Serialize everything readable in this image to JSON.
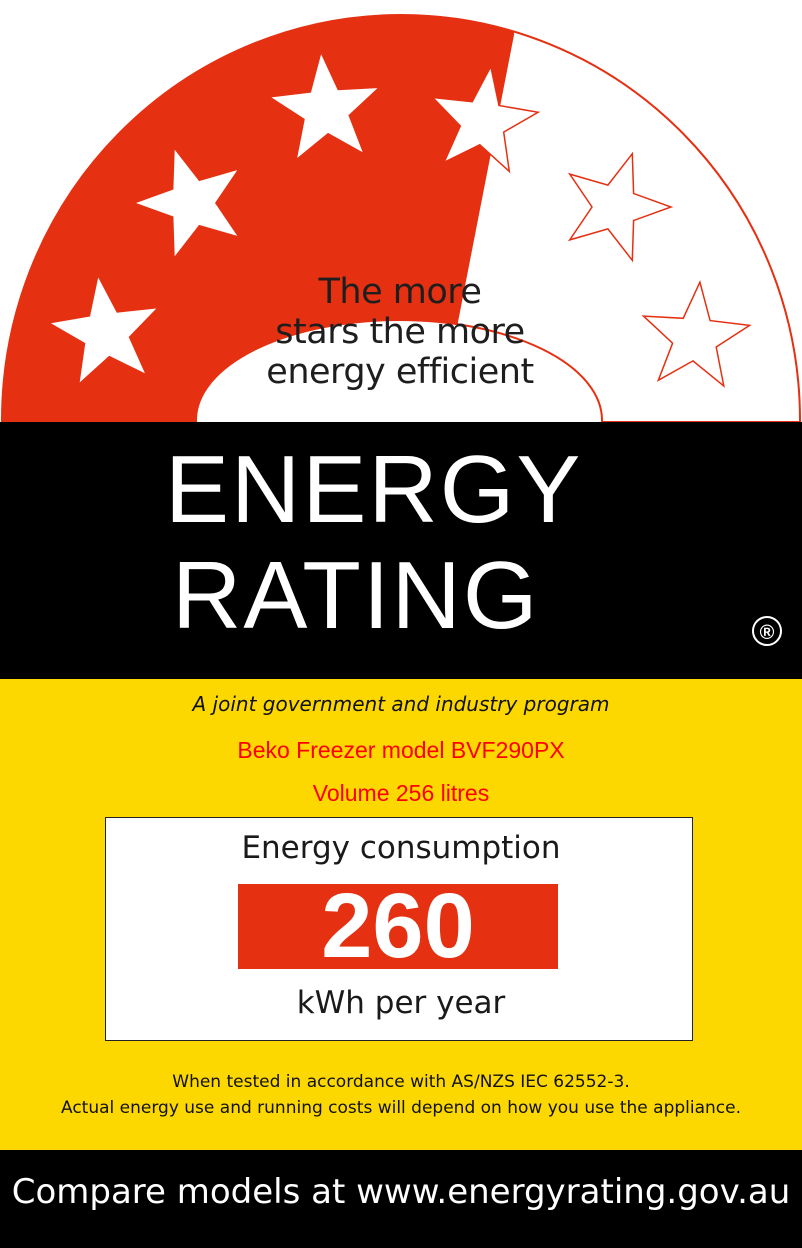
{
  "rating": {
    "stars_filled": 3.5,
    "stars_total": 6,
    "fill_color": "#e63012"
  },
  "tagline": [
    "The more",
    "stars the more",
    "energy efficient"
  ],
  "title": {
    "line1": "ENERGY",
    "line2": "RATING",
    "registered": "®"
  },
  "program": "A joint government and industry program",
  "product": {
    "model": "Beko Freezer model BVF290PX",
    "volume": "Volume 256 litres"
  },
  "consumption": {
    "label": "Energy consumption",
    "value": "260",
    "unit": "kWh per year"
  },
  "notes": [
    "When tested in accordance with AS/NZS IEC 62552-3.",
    "Actual energy use and running costs will depend on how you use the appliance."
  ],
  "footer": "Compare models at www.energyrating.gov.au",
  "colors": {
    "red": "#e63012",
    "yellow": "#fcd800",
    "black": "#000000"
  }
}
